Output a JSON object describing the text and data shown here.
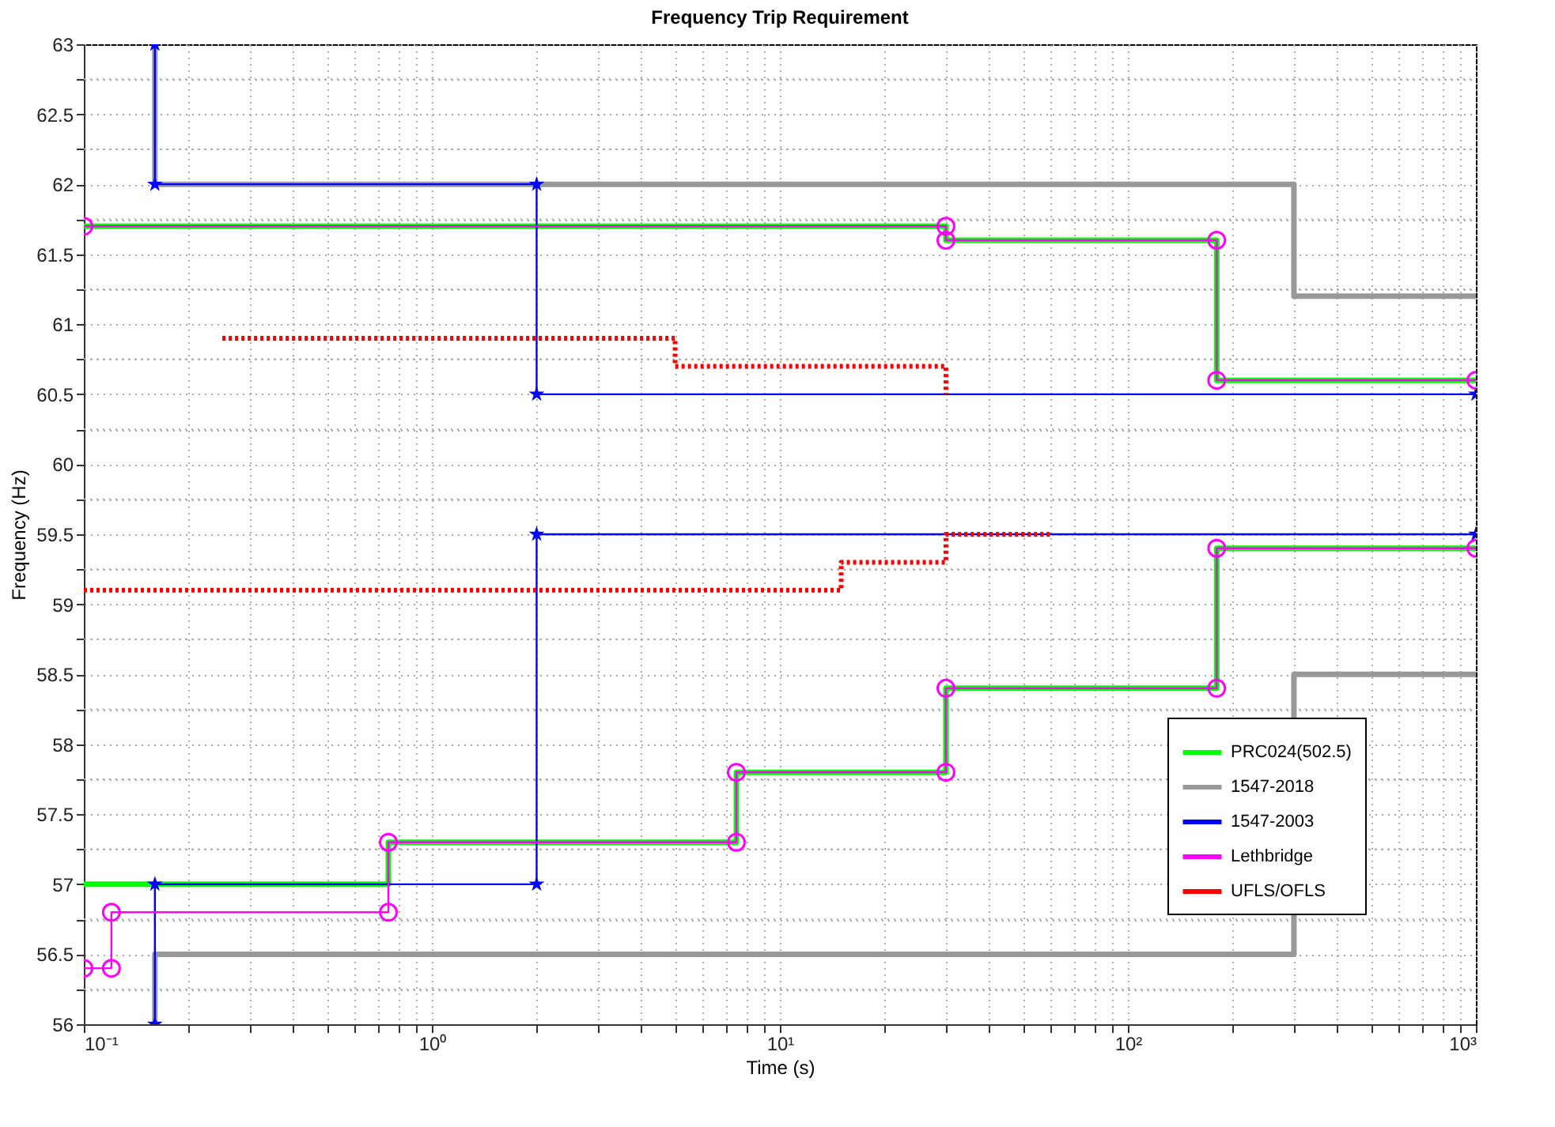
{
  "chart_data": {
    "type": "line",
    "title": "Frequency Trip Requirement",
    "xlabel": "Time (s)",
    "ylabel": "Frequency (Hz)",
    "log": "x",
    "grid": true,
    "legend": "bottom right",
    "xlim": [
      0.1,
      1000
    ],
    "ylim": [
      56,
      63
    ],
    "xticks": [
      {
        "value": 0.1,
        "label": "10⁻¹"
      },
      {
        "value": 0.2,
        "label": null
      },
      {
        "value": 0.3,
        "label": null
      },
      {
        "value": 0.4,
        "label": null
      },
      {
        "value": 0.5,
        "label": null
      },
      {
        "value": 0.6,
        "label": null
      },
      {
        "value": 0.7,
        "label": null
      },
      {
        "value": 0.8,
        "label": null
      },
      {
        "value": 0.9,
        "label": null
      },
      {
        "value": 1,
        "label": "10⁰"
      },
      {
        "value": 2,
        "label": null
      },
      {
        "value": 3,
        "label": null
      },
      {
        "value": 4,
        "label": null
      },
      {
        "value": 5,
        "label": null
      },
      {
        "value": 6,
        "label": null
      },
      {
        "value": 7,
        "label": null
      },
      {
        "value": 8,
        "label": null
      },
      {
        "value": 9,
        "label": null
      },
      {
        "value": 10,
        "label": "10¹"
      },
      {
        "value": 20,
        "label": null
      },
      {
        "value": 30,
        "label": null
      },
      {
        "value": 40,
        "label": null
      },
      {
        "value": 50,
        "label": null
      },
      {
        "value": 60,
        "label": null
      },
      {
        "value": 70,
        "label": null
      },
      {
        "value": 80,
        "label": null
      },
      {
        "value": 90,
        "label": null
      },
      {
        "value": 100,
        "label": "10²"
      },
      {
        "value": 200,
        "label": null
      },
      {
        "value": 300,
        "label": null
      },
      {
        "value": 400,
        "label": null
      },
      {
        "value": 500,
        "label": null
      },
      {
        "value": 600,
        "label": null
      },
      {
        "value": 700,
        "label": null
      },
      {
        "value": 800,
        "label": null
      },
      {
        "value": 900,
        "label": null
      },
      {
        "value": 1000,
        "label": "10³"
      }
    ],
    "yticks": [
      56,
      {
        "value": 56.25,
        "label": null
      },
      56.5,
      {
        "value": 56.75,
        "label": null
      },
      57,
      {
        "value": 57.25,
        "label": null
      },
      57.5,
      {
        "value": 57.75,
        "label": null
      },
      58,
      {
        "value": 58.25,
        "label": null
      },
      58.5,
      {
        "value": 58.75,
        "label": null
      },
      59,
      {
        "value": 59.25,
        "label": null
      },
      59.5,
      {
        "value": 59.75,
        "label": null
      },
      60,
      {
        "value": 60.25,
        "label": null
      },
      60.5,
      {
        "value": 60.75,
        "label": null
      },
      61,
      {
        "value": 61.25,
        "label": null
      },
      61.5,
      {
        "value": 61.75,
        "label": null
      },
      62,
      {
        "value": 62.25,
        "label": null
      },
      62.5,
      {
        "value": 62.75,
        "label": null
      },
      63
    ],
    "series": [
      {
        "name": "PRC024(502.5)",
        "color": "#00ff00",
        "marker": "none",
        "line_style": "solid",
        "x": [
          0.1,
          30,
          30,
          180,
          180,
          1000,
          null,
          0.1,
          0.75,
          0.75,
          7.5,
          7.5,
          30,
          30,
          180,
          180,
          1000
        ],
        "values": [
          61.7,
          61.7,
          61.6,
          61.6,
          60.6,
          60.6,
          null,
          57,
          57,
          57.3,
          57.3,
          57.8,
          57.8,
          58.4,
          58.4,
          59.4,
          59.4
        ]
      },
      {
        "name": "1547-2018",
        "color": "#999999",
        "marker": "none",
        "line_style": "solid",
        "x": [
          0.16,
          0.16,
          300,
          300,
          1000,
          null,
          0.16,
          0.16,
          300,
          300,
          1000
        ],
        "values": [
          63,
          62,
          62,
          61.2,
          61.2,
          null,
          56,
          56.5,
          56.5,
          58.5,
          58.5
        ]
      },
      {
        "name": "1547-2003",
        "color": "#0000ff",
        "marker": "star",
        "line_style": "solid",
        "x": [
          0.16,
          0.16,
          2,
          2,
          1000,
          null,
          0.16,
          0.16,
          2,
          2,
          1000
        ],
        "values": [
          63,
          62,
          62,
          60.5,
          60.5,
          null,
          56,
          57,
          57,
          59.5,
          59.5
        ]
      },
      {
        "name": "Lethbridge",
        "color": "#ff00ff",
        "marker": "circle",
        "line_style": "solid",
        "x": [
          0.1,
          30,
          30,
          180,
          180,
          1000,
          null,
          0.1,
          0.12,
          0.12,
          0.75,
          0.75,
          7.5,
          7.5,
          30,
          30,
          180,
          180,
          1000
        ],
        "values": [
          61.7,
          61.7,
          61.6,
          61.6,
          60.6,
          60.6,
          null,
          56.4,
          56.4,
          56.8,
          56.8,
          57.3,
          57.3,
          57.8,
          57.8,
          58.4,
          58.4,
          59.4,
          59.4
        ]
      },
      {
        "name": "UFLS/OFLS",
        "color": "#ff0000",
        "marker": "none",
        "line_style": "dotted",
        "x": [
          0.25,
          5,
          5,
          30,
          30,
          null,
          0.1,
          15,
          15,
          30,
          30,
          60
        ],
        "values": [
          60.9,
          60.9,
          60.7,
          60.7,
          60.5,
          null,
          59.1,
          59.1,
          59.3,
          59.3,
          59.5,
          59.5
        ]
      }
    ]
  }
}
